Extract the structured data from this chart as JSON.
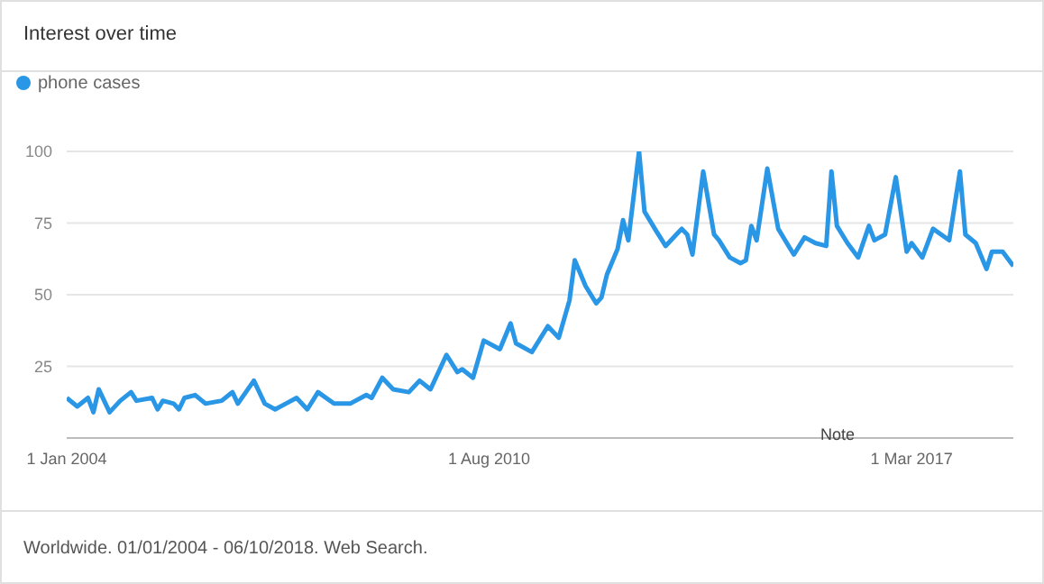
{
  "chart_data": {
    "type": "line",
    "title": "Interest over time",
    "legend": "top left",
    "grid": "y",
    "marker": "none",
    "xlim": [
      "2004-01",
      "2018-10"
    ],
    "xticks": [
      {
        "value": "2004-01-01",
        "label": "1 Jan 2004"
      },
      {
        "value": "2010-08-01",
        "label": "1 Aug 2010"
      },
      {
        "value": "2017-03-01",
        "label": "1 Mar 2017"
      }
    ],
    "ylim": [
      0,
      100
    ],
    "yticks": [
      25,
      50,
      75,
      100
    ],
    "x": [
      "2004-01",
      "2004-03",
      "2004-05",
      "2004-06",
      "2004-07",
      "2004-09",
      "2004-11",
      "2005-01",
      "2005-02",
      "2005-05",
      "2005-06",
      "2005-07",
      "2005-09",
      "2005-10",
      "2005-11",
      "2006-01",
      "2006-03",
      "2006-06",
      "2006-08",
      "2006-09",
      "2006-12",
      "2007-02",
      "2007-04",
      "2007-06",
      "2007-08",
      "2007-10",
      "2007-12",
      "2008-03",
      "2008-06",
      "2008-09",
      "2008-10",
      "2008-12",
      "2009-02",
      "2009-05",
      "2009-07",
      "2009-09",
      "2009-12",
      "2010-02",
      "2010-03",
      "2010-05",
      "2010-07",
      "2010-10",
      "2010-12",
      "2011-01",
      "2011-04",
      "2011-07",
      "2011-09",
      "2011-11",
      "2011-12",
      "2012-02",
      "2012-04",
      "2012-05",
      "2012-06",
      "2012-08",
      "2012-09",
      "2012-10",
      "2012-12",
      "2013-01",
      "2013-03",
      "2013-05",
      "2013-06",
      "2013-08",
      "2013-09",
      "2013-10",
      "2013-12",
      "2014-02",
      "2014-03",
      "2014-05",
      "2014-07",
      "2014-08",
      "2014-09",
      "2014-10",
      "2014-12",
      "2015-02",
      "2015-04",
      "2015-05",
      "2015-07",
      "2015-09",
      "2015-11",
      "2015-12",
      "2016-01",
      "2016-03",
      "2016-05",
      "2016-07",
      "2016-08",
      "2016-10",
      "2016-12",
      "2017-02",
      "2017-03",
      "2017-05",
      "2017-07",
      "2017-10",
      "2017-12",
      "2018-01",
      "2018-03",
      "2018-05",
      "2018-06",
      "2018-08",
      "2018-10"
    ],
    "series": [
      {
        "name": "phone cases",
        "color": "#2a96e6",
        "values": [
          14,
          11,
          14,
          9,
          17,
          9,
          13,
          16,
          13,
          14,
          10,
          13,
          12,
          10,
          14,
          15,
          12,
          13,
          16,
          12,
          20,
          12,
          10,
          12,
          14,
          10,
          16,
          12,
          12,
          15,
          14,
          21,
          17,
          16,
          20,
          17,
          29,
          23,
          24,
          21,
          34,
          31,
          40,
          33,
          30,
          39,
          35,
          48,
          62,
          53,
          47,
          49,
          57,
          66,
          76,
          69,
          100,
          79,
          73,
          67,
          69,
          73,
          71,
          64,
          93,
          71,
          69,
          63,
          61,
          62,
          74,
          69,
          94,
          73,
          67,
          64,
          70,
          68,
          67,
          93,
          74,
          68,
          63,
          74,
          69,
          71,
          91,
          65,
          68,
          63,
          73,
          69,
          93,
          71,
          68,
          59,
          65,
          65,
          60
        ]
      }
    ],
    "annotations": [
      "Note",
      "Worldwide. 01/01/2004 - 06/10/2018. Web Search."
    ]
  }
}
